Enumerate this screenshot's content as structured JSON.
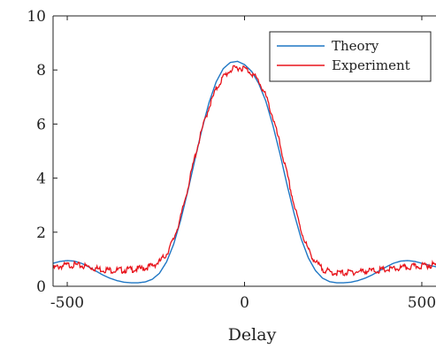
{
  "chart_data": {
    "type": "line",
    "title": "",
    "xlabel": "Delay",
    "ylabel": "",
    "xlim": [
      -540,
      540
    ],
    "ylim": [
      0,
      10
    ],
    "xticks": [
      -500,
      0,
      500
    ],
    "xtick_labels": [
      "-500",
      "0",
      "500"
    ],
    "yticks": [
      0,
      2,
      4,
      6,
      8,
      10
    ],
    "ytick_labels": [
      "0",
      "2",
      "4",
      "6",
      "8",
      "10"
    ],
    "grid": false,
    "legend_position": "top-right",
    "series": [
      {
        "name": "Theory",
        "color": "#1f77c4",
        "x": [
          -540,
          -520,
          -500,
          -480,
          -460,
          -440,
          -420,
          -400,
          -380,
          -360,
          -340,
          -320,
          -300,
          -280,
          -260,
          -240,
          -220,
          -200,
          -180,
          -160,
          -140,
          -120,
          -100,
          -80,
          -60,
          -40,
          -20,
          0,
          20,
          40,
          60,
          80,
          100,
          120,
          140,
          160,
          180,
          200,
          220,
          240,
          260,
          280,
          300,
          320,
          340,
          360,
          380,
          400,
          420,
          440,
          460,
          480,
          500,
          520,
          540
        ],
        "y": [
          0.85,
          0.92,
          0.95,
          0.93,
          0.85,
          0.72,
          0.57,
          0.42,
          0.3,
          0.21,
          0.15,
          0.13,
          0.13,
          0.16,
          0.26,
          0.48,
          0.9,
          1.55,
          2.45,
          3.52,
          4.68,
          5.81,
          6.8,
          7.56,
          8.05,
          8.28,
          8.32,
          8.2,
          7.95,
          7.5,
          6.85,
          5.95,
          4.9,
          3.75,
          2.68,
          1.75,
          1.05,
          0.58,
          0.3,
          0.17,
          0.13,
          0.13,
          0.15,
          0.21,
          0.3,
          0.42,
          0.57,
          0.72,
          0.85,
          0.93,
          0.95,
          0.92,
          0.85,
          0.78,
          0.72
        ]
      },
      {
        "name": "Experiment",
        "color": "#e8141c",
        "x": [
          -540,
          -520,
          -500,
          -480,
          -460,
          -440,
          -420,
          -400,
          -380,
          -360,
          -340,
          -320,
          -300,
          -280,
          -260,
          -240,
          -220,
          -200,
          -180,
          -160,
          -140,
          -120,
          -100,
          -80,
          -60,
          -40,
          -20,
          0,
          20,
          40,
          60,
          80,
          100,
          120,
          140,
          160,
          180,
          200,
          220,
          240,
          260,
          280,
          300,
          320,
          340,
          360,
          380,
          400,
          420,
          440,
          460,
          480,
          500,
          520,
          540
        ],
        "y": [
          0.72,
          0.8,
          0.84,
          0.85,
          0.82,
          0.78,
          0.72,
          0.68,
          0.66,
          0.65,
          0.66,
          0.68,
          0.7,
          0.74,
          0.82,
          0.96,
          1.25,
          1.8,
          2.6,
          3.7,
          4.85,
          5.85,
          6.7,
          7.35,
          7.8,
          8.05,
          8.15,
          8.12,
          7.95,
          7.65,
          7.1,
          6.3,
          5.3,
          4.2,
          3.05,
          2.1,
          1.4,
          0.95,
          0.7,
          0.58,
          0.55,
          0.55,
          0.58,
          0.6,
          0.62,
          0.63,
          0.65,
          0.67,
          0.7,
          0.73,
          0.76,
          0.79,
          0.82,
          0.84,
          0.85
        ]
      }
    ]
  }
}
